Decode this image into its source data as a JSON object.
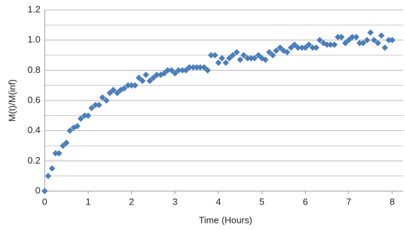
{
  "chart_data": {
    "type": "scatter",
    "xlabel": "Time (Hours)",
    "ylabel": "M(t)/M(inf)",
    "xlim": [
      0,
      8.25
    ],
    "ylim": [
      0,
      1.2
    ],
    "xticks": [
      0,
      1,
      2,
      3,
      4,
      5,
      6,
      7,
      8
    ],
    "yticks": [
      0,
      0.2,
      0.4,
      0.6,
      0.8,
      {
        "value": 1,
        "label": "1.0"
      },
      1.2
    ],
    "y_minor_ticks": [
      0.1,
      0.3,
      0.5,
      0.7,
      0.9,
      1.1
    ],
    "grid": true,
    "marker": "diamond",
    "series": [
      {
        "color": "#4a7ebb",
        "x": [
          0,
          0.08,
          0.17,
          0.25,
          0.33,
          0.42,
          0.5,
          0.58,
          0.67,
          0.75,
          0.83,
          0.92,
          1.0,
          1.08,
          1.17,
          1.25,
          1.33,
          1.42,
          1.5,
          1.58,
          1.67,
          1.75,
          1.83,
          1.92,
          2.0,
          2.08,
          2.17,
          2.25,
          2.33,
          2.42,
          2.5,
          2.58,
          2.67,
          2.75,
          2.83,
          2.92,
          3.0,
          3.08,
          3.17,
          3.25,
          3.33,
          3.42,
          3.5,
          3.58,
          3.67,
          3.75,
          3.83,
          3.92,
          4.0,
          4.08,
          4.17,
          4.25,
          4.33,
          4.42,
          4.5,
          4.58,
          4.67,
          4.75,
          4.83,
          4.92,
          5.0,
          5.08,
          5.17,
          5.25,
          5.33,
          5.42,
          5.5,
          5.58,
          5.67,
          5.75,
          5.83,
          5.92,
          6.0,
          6.08,
          6.17,
          6.25,
          6.33,
          6.42,
          6.5,
          6.58,
          6.67,
          6.75,
          6.83,
          6.92,
          7.0,
          7.08,
          7.17,
          7.25,
          7.33,
          7.42,
          7.5,
          7.58,
          7.67,
          7.75,
          7.83,
          7.92,
          8.0
        ],
        "values": [
          0,
          0.1,
          0.15,
          0.25,
          0.25,
          0.3,
          0.32,
          0.4,
          0.42,
          0.43,
          0.48,
          0.5,
          0.5,
          0.55,
          0.57,
          0.57,
          0.62,
          0.6,
          0.65,
          0.67,
          0.65,
          0.67,
          0.68,
          0.7,
          0.7,
          0.7,
          0.75,
          0.73,
          0.77,
          0.73,
          0.75,
          0.77,
          0.77,
          0.78,
          0.8,
          0.8,
          0.78,
          0.8,
          0.8,
          0.8,
          0.82,
          0.82,
          0.82,
          0.82,
          0.82,
          0.8,
          0.9,
          0.9,
          0.85,
          0.88,
          0.85,
          0.88,
          0.9,
          0.92,
          0.87,
          0.9,
          0.88,
          0.88,
          0.88,
          0.9,
          0.88,
          0.87,
          0.92,
          0.9,
          0.93,
          0.95,
          0.93,
          0.92,
          0.95,
          0.97,
          0.95,
          0.95,
          0.95,
          0.97,
          0.95,
          0.95,
          1.0,
          0.98,
          0.97,
          0.97,
          0.97,
          1.02,
          1.02,
          0.98,
          1.0,
          1.02,
          1.02,
          0.98,
          0.98,
          1.0,
          1.05,
          1.0,
          0.98,
          1.03,
          0.95,
          1.0,
          1.0
        ]
      }
    ]
  }
}
